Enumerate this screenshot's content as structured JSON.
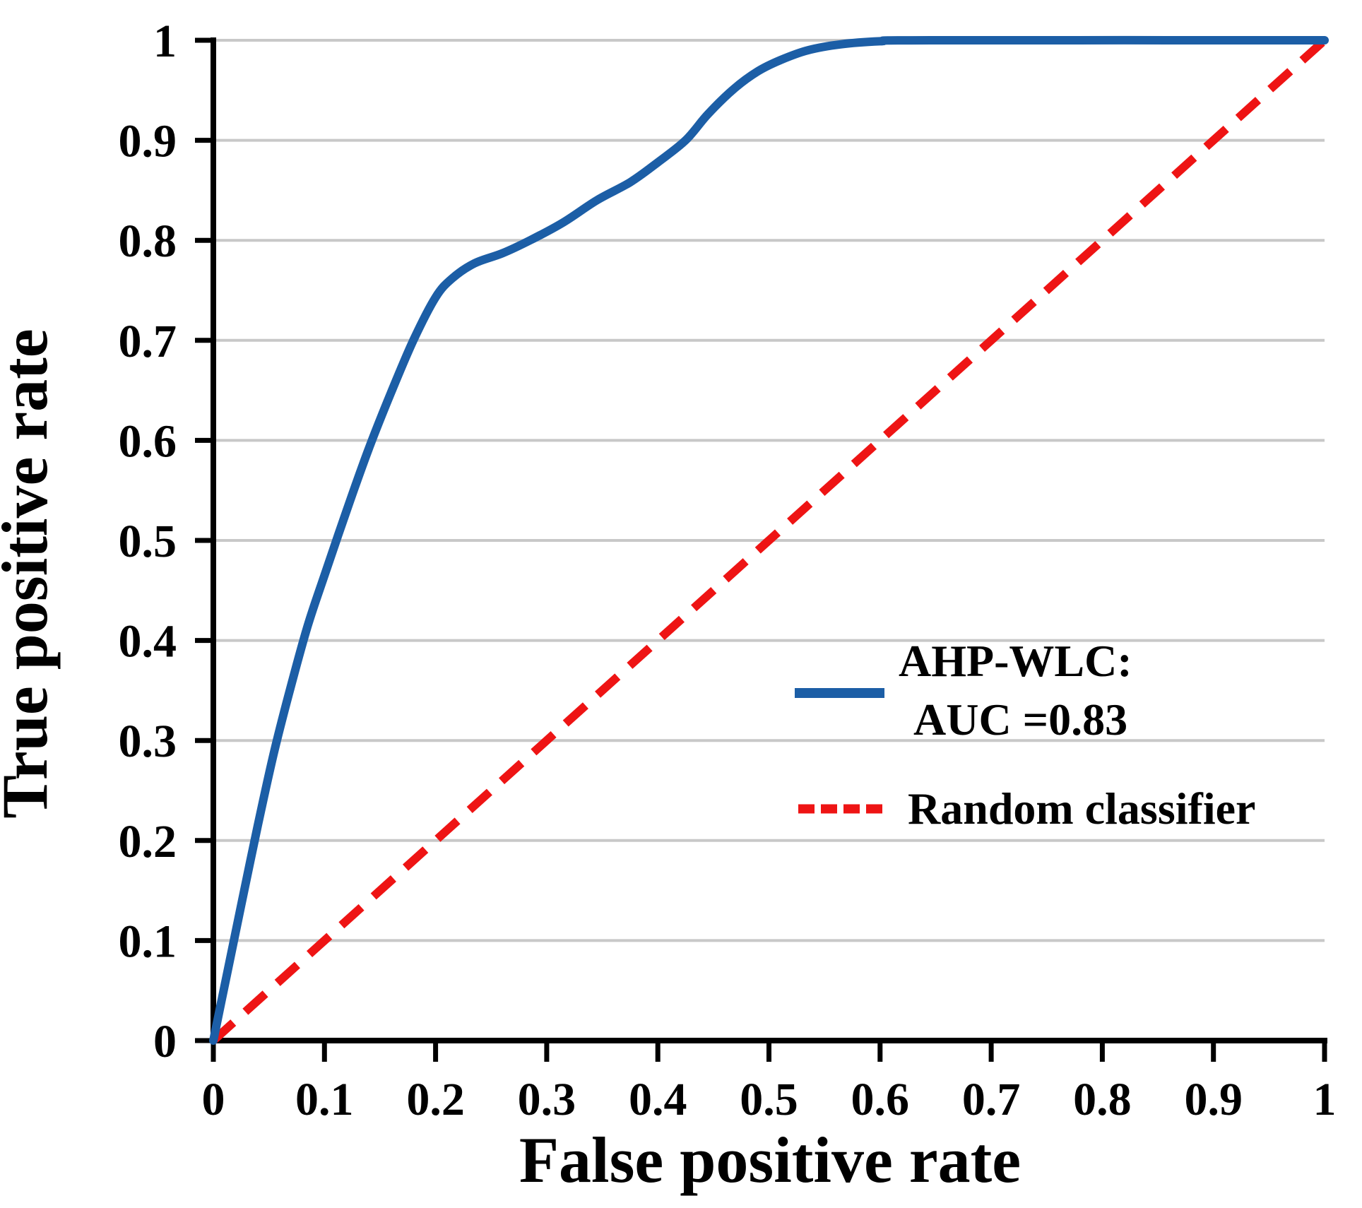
{
  "chart_data": {
    "type": "line",
    "title": "",
    "xlabel": "False positive rate",
    "ylabel": "True positive rate",
    "xlim": [
      0,
      1
    ],
    "ylim": [
      0,
      1
    ],
    "grid": "horizontal-only",
    "gridline_color": "#c8c8c8",
    "axis_color": "#000000",
    "background_color": "#ffffff",
    "tick_values": [
      0,
      0.1,
      0.2,
      0.3,
      0.4,
      0.5,
      0.6,
      0.7,
      0.8,
      0.9,
      1
    ],
    "tick_labels": [
      "0",
      "0.1",
      "0.2",
      "0.3",
      "0.4",
      "0.5",
      "0.6",
      "0.7",
      "0.8",
      "0.9",
      "1"
    ],
    "series": [
      {
        "name": "AHP-WLC",
        "auc": 0.83,
        "color": "#1c5ea6",
        "style": "solid",
        "points": [
          [
            0,
            0
          ],
          [
            0.012,
            0.065
          ],
          [
            0.025,
            0.135
          ],
          [
            0.04,
            0.215
          ],
          [
            0.055,
            0.29
          ],
          [
            0.07,
            0.355
          ],
          [
            0.085,
            0.415
          ],
          [
            0.1,
            0.465
          ],
          [
            0.12,
            0.53
          ],
          [
            0.14,
            0.592
          ],
          [
            0.16,
            0.648
          ],
          [
            0.18,
            0.7
          ],
          [
            0.2,
            0.743
          ],
          [
            0.215,
            0.762
          ],
          [
            0.235,
            0.777
          ],
          [
            0.26,
            0.787
          ],
          [
            0.285,
            0.8
          ],
          [
            0.315,
            0.818
          ],
          [
            0.345,
            0.84
          ],
          [
            0.375,
            0.858
          ],
          [
            0.4,
            0.878
          ],
          [
            0.425,
            0.9
          ],
          [
            0.445,
            0.926
          ],
          [
            0.468,
            0.951
          ],
          [
            0.49,
            0.969
          ],
          [
            0.51,
            0.98
          ],
          [
            0.535,
            0.99
          ],
          [
            0.565,
            0.996
          ],
          [
            0.6,
            0.999
          ],
          [
            0.645,
            1.0
          ],
          [
            1,
            1
          ]
        ]
      },
      {
        "name": "Random classifier",
        "color": "#ee1414",
        "style": "dashed",
        "points": [
          [
            0,
            0
          ],
          [
            1,
            1
          ]
        ]
      }
    ],
    "legend": {
      "position": "inside-right-middle",
      "items": [
        {
          "lines": [
            "AHP-WLC:",
            "AUC =0.83"
          ],
          "color": "#1c5ea6",
          "style": "solid"
        },
        {
          "lines": [
            "Random classifier"
          ],
          "color": "#ee1414",
          "style": "dashed"
        }
      ]
    }
  }
}
